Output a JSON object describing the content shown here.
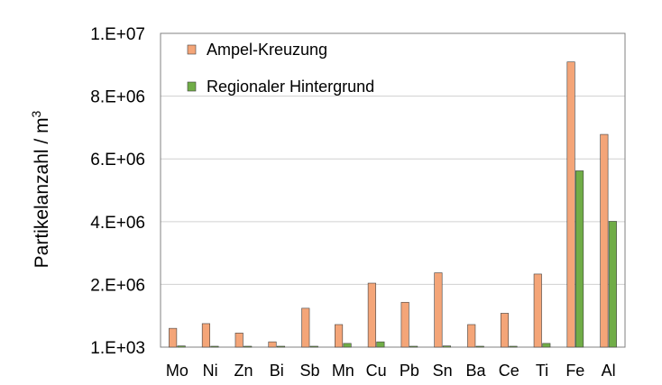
{
  "chart_data": {
    "type": "bar",
    "ylabel": "Partikelanzahl / m",
    "ylabel_superscript": "3",
    "categories": [
      "Mo",
      "Ni",
      "Zn",
      "Bi",
      "Sb",
      "Mn",
      "Cu",
      "Pb",
      "Sn",
      "Ba",
      "Ce",
      "Ti",
      "Fe",
      "Al"
    ],
    "series": [
      {
        "name": "Ampel-Kreuzung",
        "color": "#F4A578",
        "values": [
          600000,
          750000,
          450000,
          170000,
          1240000,
          720000,
          2040000,
          1430000,
          2370000,
          720000,
          1080000,
          2330000,
          9090000,
          6780000
        ]
      },
      {
        "name": "Regionaler Hintergrund",
        "color": "#70AD47",
        "values": [
          40000,
          30000,
          30000,
          30000,
          30000,
          120000,
          170000,
          30000,
          40000,
          30000,
          30000,
          120000,
          5620000,
          4010000
        ]
      }
    ],
    "yticks": [
      {
        "value": 1000,
        "label": "1.E+03"
      },
      {
        "value": 2000000,
        "label": "2.E+06"
      },
      {
        "value": 4000000,
        "label": "4.E+06"
      },
      {
        "value": 6000000,
        "label": "6.E+06"
      },
      {
        "value": 8000000,
        "label": "8.E+06"
      },
      {
        "value": 10000000,
        "label": "1.E+07"
      }
    ],
    "ylim": [
      1000,
      10000000
    ],
    "grid": true,
    "legend_position": "top-left inside"
  }
}
